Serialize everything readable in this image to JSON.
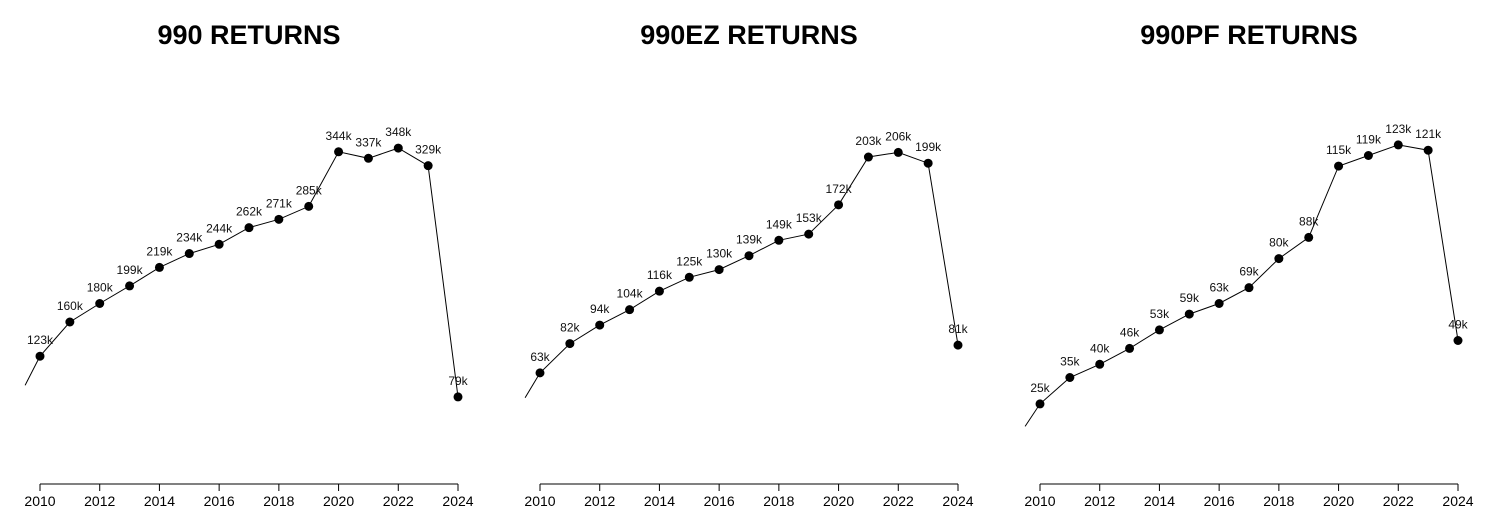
{
  "chart_data": [
    {
      "type": "line",
      "title": "990 RETURNS",
      "x": [
        2010,
        2011,
        2012,
        2013,
        2014,
        2015,
        2016,
        2017,
        2018,
        2019,
        2020,
        2021,
        2022,
        2023,
        2024
      ],
      "values": [
        123,
        160,
        180,
        199,
        219,
        234,
        244,
        262,
        271,
        285,
        344,
        337,
        348,
        329,
        79
      ],
      "labels": [
        "123k",
        "160k",
        "180k",
        "199k",
        "219k",
        "234k",
        "244k",
        "262k",
        "271k",
        "285k",
        "344k",
        "337k",
        "348k",
        "329k",
        "79k"
      ],
      "xticks": [
        "2010",
        "2012",
        "2014",
        "2016",
        "2018",
        "2020",
        "2022",
        "2024"
      ],
      "ylim": [
        0,
        400
      ],
      "xlim": [
        2009.5,
        2024.5
      ],
      "grid": false
    },
    {
      "type": "line",
      "title": "990EZ RETURNS",
      "x": [
        2010,
        2011,
        2012,
        2013,
        2014,
        2015,
        2016,
        2017,
        2018,
        2019,
        2020,
        2021,
        2022,
        2023,
        2024
      ],
      "values": [
        63,
        82,
        94,
        104,
        116,
        125,
        130,
        139,
        149,
        153,
        172,
        203,
        206,
        199,
        81
      ],
      "labels": [
        "63k",
        "82k",
        "94k",
        "104k",
        "116k",
        "125k",
        "130k",
        "139k",
        "149k",
        "153k",
        "172k",
        "203k",
        "206k",
        "199k",
        "81k"
      ],
      "xticks": [
        "2010",
        "2012",
        "2014",
        "2016",
        "2018",
        "2020",
        "2022",
        "2024"
      ],
      "ylim": [
        0,
        240
      ],
      "xlim": [
        2009.5,
        2024.5
      ],
      "grid": false
    },
    {
      "type": "line",
      "title": "990PF RETURNS",
      "x": [
        2010,
        2011,
        2012,
        2013,
        2014,
        2015,
        2016,
        2017,
        2018,
        2019,
        2020,
        2021,
        2022,
        2023,
        2024
      ],
      "values": [
        25,
        35,
        40,
        46,
        53,
        59,
        63,
        69,
        80,
        88,
        115,
        119,
        123,
        121,
        49
      ],
      "labels": [
        "25k",
        "35k",
        "40k",
        "46k",
        "53k",
        "59k",
        "63k",
        "69k",
        "80k",
        "88k",
        "115k",
        "119k",
        "123k",
        "121k",
        "49k"
      ],
      "xticks": [
        "2010",
        "2012",
        "2014",
        "2016",
        "2018",
        "2020",
        "2022",
        "2024"
      ],
      "ylim": [
        0,
        140
      ],
      "xlim": [
        2009.5,
        2024.5
      ],
      "grid": false
    }
  ]
}
